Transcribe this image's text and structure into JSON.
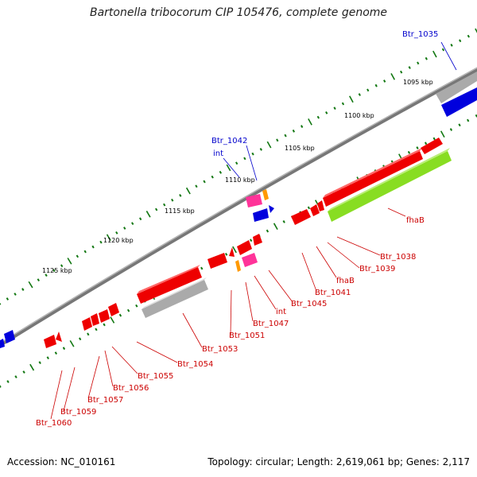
{
  "title": "Bartonella tribocorum CIP 105476, complete genome",
  "footer": {
    "accession": "Accession: NC_010161",
    "summary": "Topology: circular; Length: 2,619,061 bp; Genes: 2,117"
  },
  "colors": {
    "forward_gene": "#ee0000",
    "reverse_gene": "#0000dd",
    "pseudo_gene": "#aaaaaa",
    "rna_gene": "#ff3399",
    "hypothetical_gene": "#ff9900",
    "large_feature": "#88dd22",
    "tick": "#117711",
    "backbone": "#777777",
    "label_forward": "#cc0000",
    "label_reverse": "#0000cc"
  },
  "scale_labels": [
    "1095 kbp",
    "1100 kbp",
    "1105 kbp",
    "1110 kbp",
    "1115 kbp",
    "1120 kbp",
    "1125 kbp"
  ],
  "gene_labels": [
    {
      "text": "Btr_1035",
      "strand": "reverse"
    },
    {
      "text": "Btr_1042",
      "strand": "reverse"
    },
    {
      "text": "int",
      "strand": "reverse"
    },
    {
      "text": "fhaB",
      "strand": "forward"
    },
    {
      "text": "Btr_1038",
      "strand": "forward"
    },
    {
      "text": "Btr_1039",
      "strand": "forward"
    },
    {
      "text": "fhaB",
      "strand": "forward"
    },
    {
      "text": "Btr_1041",
      "strand": "forward"
    },
    {
      "text": "Btr_1045",
      "strand": "forward"
    },
    {
      "text": "int",
      "strand": "forward"
    },
    {
      "text": "Btr_1047",
      "strand": "forward"
    },
    {
      "text": "Btr_1051",
      "strand": "forward"
    },
    {
      "text": "Btr_1053",
      "strand": "forward"
    },
    {
      "text": "Btr_1054",
      "strand": "forward"
    },
    {
      "text": "Btr_1055",
      "strand": "forward"
    },
    {
      "text": "Btr_1056",
      "strand": "forward"
    },
    {
      "text": "Btr_1057",
      "strand": "forward"
    },
    {
      "text": "Btr_1059",
      "strand": "forward"
    },
    {
      "text": "Btr_1060",
      "strand": "forward"
    }
  ]
}
